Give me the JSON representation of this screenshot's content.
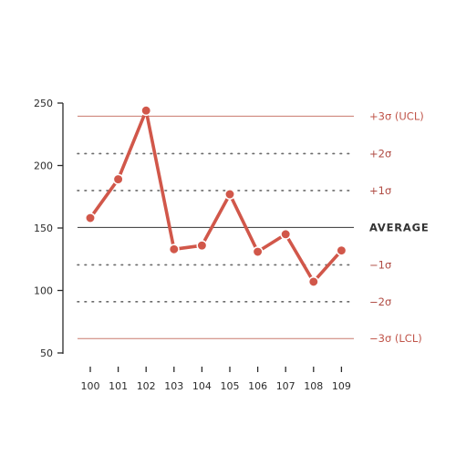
{
  "chart_data": {
    "type": "line",
    "x": [
      "100",
      "101",
      "102",
      "103",
      "104",
      "105",
      "106",
      "107",
      "108",
      "109"
    ],
    "series": [
      {
        "values": [
          158,
          189,
          244,
          133,
          136,
          177,
          131,
          145,
          107,
          132
        ],
        "color": "#d1574a"
      }
    ],
    "ylim": [
      50,
      250
    ],
    "yticks": [
      50,
      100,
      150,
      200,
      250
    ],
    "grid": false,
    "reference_lines": [
      {
        "label": "+3σ (UCL)",
        "value": 239.5,
        "style": "solid",
        "color": "#c97a6e",
        "label_color": "#c0554a"
      },
      {
        "label": "+2σ",
        "value": 209.5,
        "style": "dotted",
        "color": "#6a6a6a",
        "label_color": "#b04c44"
      },
      {
        "label": "+1σ",
        "value": 180,
        "style": "dotted",
        "color": "#6a6a6a",
        "label_color": "#b04c44"
      },
      {
        "label": "AVERAGE",
        "value": 150.5,
        "style": "solid",
        "color": "#333333",
        "label_color": "#333333"
      },
      {
        "label": "−1σ",
        "value": 120.5,
        "style": "dotted",
        "color": "#6a6a6a",
        "label_color": "#b04c44"
      },
      {
        "label": "−2σ",
        "value": 91,
        "style": "dotted",
        "color": "#6a6a6a",
        "label_color": "#b04c44"
      },
      {
        "label": "−3σ (LCL)",
        "value": 61.5,
        "style": "solid",
        "color": "#c97a6e",
        "label_color": "#c0554a"
      }
    ]
  }
}
